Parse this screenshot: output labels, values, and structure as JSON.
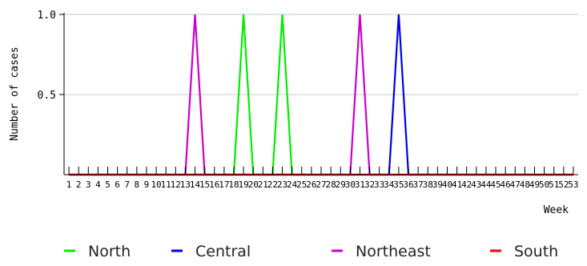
{
  "chart_data": {
    "type": "line",
    "title": "",
    "xlabel": "Week",
    "ylabel": "Number of cases",
    "ylim": [
      0,
      1.0
    ],
    "yticks": [
      0.5,
      1.0
    ],
    "ytick_labels": [
      "0.5",
      "1.0"
    ],
    "x": [
      1,
      2,
      3,
      4,
      5,
      6,
      7,
      8,
      9,
      10,
      11,
      12,
      13,
      14,
      15,
      16,
      17,
      18,
      19,
      20,
      21,
      22,
      23,
      24,
      25,
      26,
      27,
      28,
      29,
      30,
      31,
      32,
      33,
      34,
      35,
      36,
      37,
      38,
      39,
      40,
      41,
      42,
      43,
      44,
      45,
      46,
      47,
      48,
      49,
      50,
      51,
      52,
      53
    ],
    "x_tick_labels": [
      "1",
      "2",
      "3",
      "4",
      "5",
      "6",
      "7",
      "8",
      "9",
      "10",
      "11",
      "12",
      "13",
      "14",
      "15",
      "16",
      "17",
      "18",
      "19",
      "20",
      "21",
      "22",
      "23",
      "24",
      "25",
      "26",
      "27",
      "28",
      "29",
      "30",
      "31",
      "32",
      "33",
      "34",
      "35",
      "36",
      "37",
      "38",
      "39",
      "40",
      "41",
      "42",
      "43",
      "44",
      "45",
      "46",
      "47",
      "48",
      "49",
      "50",
      "51",
      "52",
      "53"
    ],
    "grid": true,
    "legend_position": "bottom",
    "series": [
      {
        "name": "North",
        "color": "#00ee00",
        "values": [
          0,
          0,
          0,
          0,
          0,
          0,
          0,
          0,
          0,
          0,
          0,
          0,
          0,
          0,
          0,
          0,
          0,
          0,
          1,
          0,
          0,
          0,
          1,
          0,
          0,
          0,
          0,
          0,
          0,
          0,
          0,
          0,
          0,
          0,
          0,
          0,
          0,
          0,
          0,
          0,
          0,
          0,
          0,
          0,
          0,
          0,
          0,
          0,
          0,
          0,
          0,
          0,
          0
        ]
      },
      {
        "name": "Central",
        "color": "#0000ee",
        "values": [
          0,
          0,
          0,
          0,
          0,
          0,
          0,
          0,
          0,
          0,
          0,
          0,
          0,
          0,
          0,
          0,
          0,
          0,
          0,
          0,
          0,
          0,
          0,
          0,
          0,
          0,
          0,
          0,
          0,
          0,
          0,
          0,
          0,
          0,
          1,
          0,
          0,
          0,
          0,
          0,
          0,
          0,
          0,
          0,
          0,
          0,
          0,
          0,
          0,
          0,
          0,
          0,
          0
        ]
      },
      {
        "name": "Northeast",
        "color": "#cc00cc",
        "values": [
          0,
          0,
          0,
          0,
          0,
          0,
          0,
          0,
          0,
          0,
          0,
          0,
          0,
          1,
          0,
          0,
          0,
          0,
          0,
          0,
          0,
          0,
          0,
          0,
          0,
          0,
          0,
          0,
          0,
          0,
          1,
          0,
          0,
          0,
          0,
          0,
          0,
          0,
          0,
          0,
          0,
          0,
          0,
          0,
          0,
          0,
          0,
          0,
          0,
          0,
          0,
          0,
          0
        ]
      },
      {
        "name": "South",
        "color": "#ff0000",
        "values": [
          0,
          0,
          0,
          0,
          0,
          0,
          0,
          0,
          0,
          0,
          0,
          0,
          0,
          0,
          0,
          0,
          0,
          0,
          0,
          0,
          0,
          0,
          0,
          0,
          0,
          0,
          0,
          0,
          0,
          0,
          0,
          0,
          0,
          0,
          0,
          0,
          0,
          0,
          0,
          0,
          0,
          0,
          0,
          0,
          0,
          0,
          0,
          0,
          0,
          0,
          0,
          0,
          0
        ]
      }
    ]
  }
}
